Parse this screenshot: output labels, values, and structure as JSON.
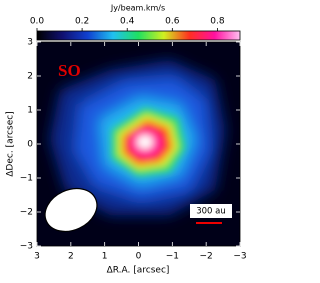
{
  "chart_data": {
    "type": "image",
    "colorbar_label": "Jy/beam.km/s",
    "colorbar_lim": [
      0,
      0.9
    ],
    "colorbar_ticks": [
      {
        "value": 0,
        "label": "0.0"
      },
      0.2,
      0.4,
      0.6,
      0.8
    ],
    "colormap": [
      "#000000",
      "#101070",
      "#1040d0",
      "#20c0f0",
      "#20e060",
      "#d0f020",
      "#ff3020",
      "#ff10a0",
      "#ffc0f0"
    ],
    "xlabel": "ΔR.A. [arcsec]",
    "ylabel": "ΔDec. [arcsec]",
    "xlim": [
      3,
      -3
    ],
    "ylim": [
      -3,
      3
    ],
    "xticks": [
      3,
      2,
      1,
      0,
      {
        "value": -1,
        "label": "−1"
      },
      {
        "value": -2,
        "label": "−2"
      },
      {
        "value": -3,
        "label": "−3"
      }
    ],
    "yticks": [
      {
        "value": -3,
        "label": "−3"
      },
      {
        "value": -2,
        "label": "−2"
      },
      {
        "value": -1,
        "label": "−1"
      },
      0,
      1,
      2,
      3
    ],
    "annotations": [
      "SO",
      "300 au"
    ]
  }
}
